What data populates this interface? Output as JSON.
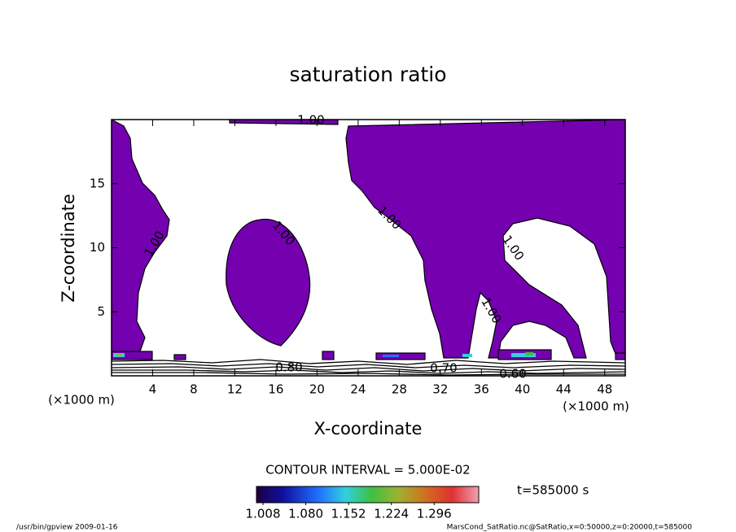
{
  "chart_data": {
    "type": "contour",
    "title": "saturation ratio",
    "xlabel": "X-coordinate",
    "ylabel": "Z-coordinate",
    "x_unit": "(×1000 m)",
    "xlim": [
      0,
      50
    ],
    "xticks": [
      4,
      8,
      12,
      16,
      20,
      24,
      28,
      32,
      36,
      40,
      44,
      48
    ],
    "ylim": [
      0,
      20
    ],
    "yticks": [
      5,
      10,
      15
    ],
    "contour_labels": [
      "1.00",
      "1.00",
      "1.00",
      "1.00",
      "1.00",
      "1.00",
      "0.80",
      "0.70",
      "0.60"
    ],
    "contour_interval": "CONTOUR INTERVAL = 5.000E-02",
    "colorbar_lim": [
      0.997,
      1.371
    ],
    "colorbar_ticks": [
      {
        "value": 1.008,
        "label": "1.008"
      },
      {
        "value": 1.08,
        "label": "1.080"
      },
      {
        "value": 1.152,
        "label": "1.152"
      },
      {
        "value": 1.224,
        "label": "1.224"
      },
      {
        "value": 1.296,
        "label": "1.296"
      }
    ],
    "time_label": "t=585000 s",
    "footer_left": "/usr/bin/gpview  2009-01-16",
    "footer_right": "MarsCond_SatRatio.nc@SatRatio,x=0:50000,z=0:20000,t=585000"
  }
}
